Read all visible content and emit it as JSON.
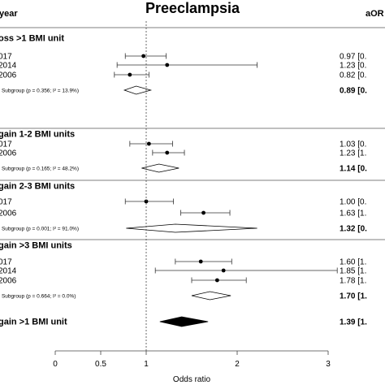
{
  "chart_data": {
    "type": "forest",
    "title": "Preeclampsia",
    "columns": {
      "study": "year",
      "estimate": "aOR"
    },
    "xlabel": "Odds ratio",
    "xlim": [
      0,
      3
    ],
    "xticks": [
      "0",
      "0.5",
      "1",
      "2",
      "3"
    ],
    "reference_line": 1,
    "groups": [
      {
        "header": "oss >1 BMI unit",
        "studies": [
          {
            "label": "017",
            "or": 0.97,
            "lo": 0.77,
            "hi": 1.22,
            "est_text": "0.97 [0."
          },
          {
            "label": "2014",
            "or": 1.23,
            "lo": 0.68,
            "hi": 2.22,
            "est_text": "1.23 [0."
          },
          {
            "label": "2006",
            "or": 0.82,
            "lo": 0.65,
            "hi": 1.03,
            "est_text": "0.82 [0."
          }
        ],
        "subgroup": {
          "label": "r Subgroup (p = 0.356; I² = 13.9%)",
          "or": 0.89,
          "lo": 0.76,
          "hi": 1.05,
          "est_text": "0.89 [0."
        }
      },
      {
        "header": "gain 1-2 BMI units",
        "studies": [
          {
            "label": "017",
            "or": 1.03,
            "lo": 0.82,
            "hi": 1.29,
            "est_text": "1.03 [0."
          },
          {
            "label": "2006",
            "or": 1.23,
            "lo": 1.07,
            "hi": 1.42,
            "est_text": "1.23 [1."
          }
        ],
        "subgroup": {
          "label": "r Subgroup (p = 0.165; I² = 48.2%)",
          "or": 1.14,
          "lo": 0.95,
          "hi": 1.36,
          "est_text": "1.14 [0."
        }
      },
      {
        "header": "gain 2-3 BMI units",
        "studies": [
          {
            "label": "017",
            "or": 1.0,
            "lo": 0.77,
            "hi": 1.3,
            "est_text": "1.00 [0."
          },
          {
            "label": "2006",
            "or": 1.63,
            "lo": 1.38,
            "hi": 1.92,
            "est_text": "1.63 [1."
          }
        ],
        "subgroup": {
          "label": "r Subgroup (p = 0.001; I² = 91.0%)",
          "or": 1.32,
          "lo": 0.78,
          "hi": 2.22,
          "est_text": "1.32 [0."
        }
      },
      {
        "header": "gain >3 BMI units",
        "studies": [
          {
            "label": "017",
            "or": 1.6,
            "lo": 1.32,
            "hi": 1.94,
            "est_text": "1.60 [1."
          },
          {
            "label": "2014",
            "or": 1.85,
            "lo": 1.1,
            "hi": 3.1,
            "est_text": "1.85 [1."
          },
          {
            "label": "2006",
            "or": 1.78,
            "lo": 1.5,
            "hi": 2.1,
            "est_text": "1.78 [1."
          }
        ],
        "subgroup": {
          "label": "r Subgroup (p = 0.664; I² = 0.0%)",
          "or": 1.7,
          "lo": 1.5,
          "hi": 1.93,
          "est_text": "1.70 [1."
        }
      }
    ],
    "overall": {
      "label": "gain >1 BMI unit",
      "or": 1.39,
      "lo": 1.15,
      "hi": 1.68,
      "est_text": "1.39 [1."
    }
  }
}
